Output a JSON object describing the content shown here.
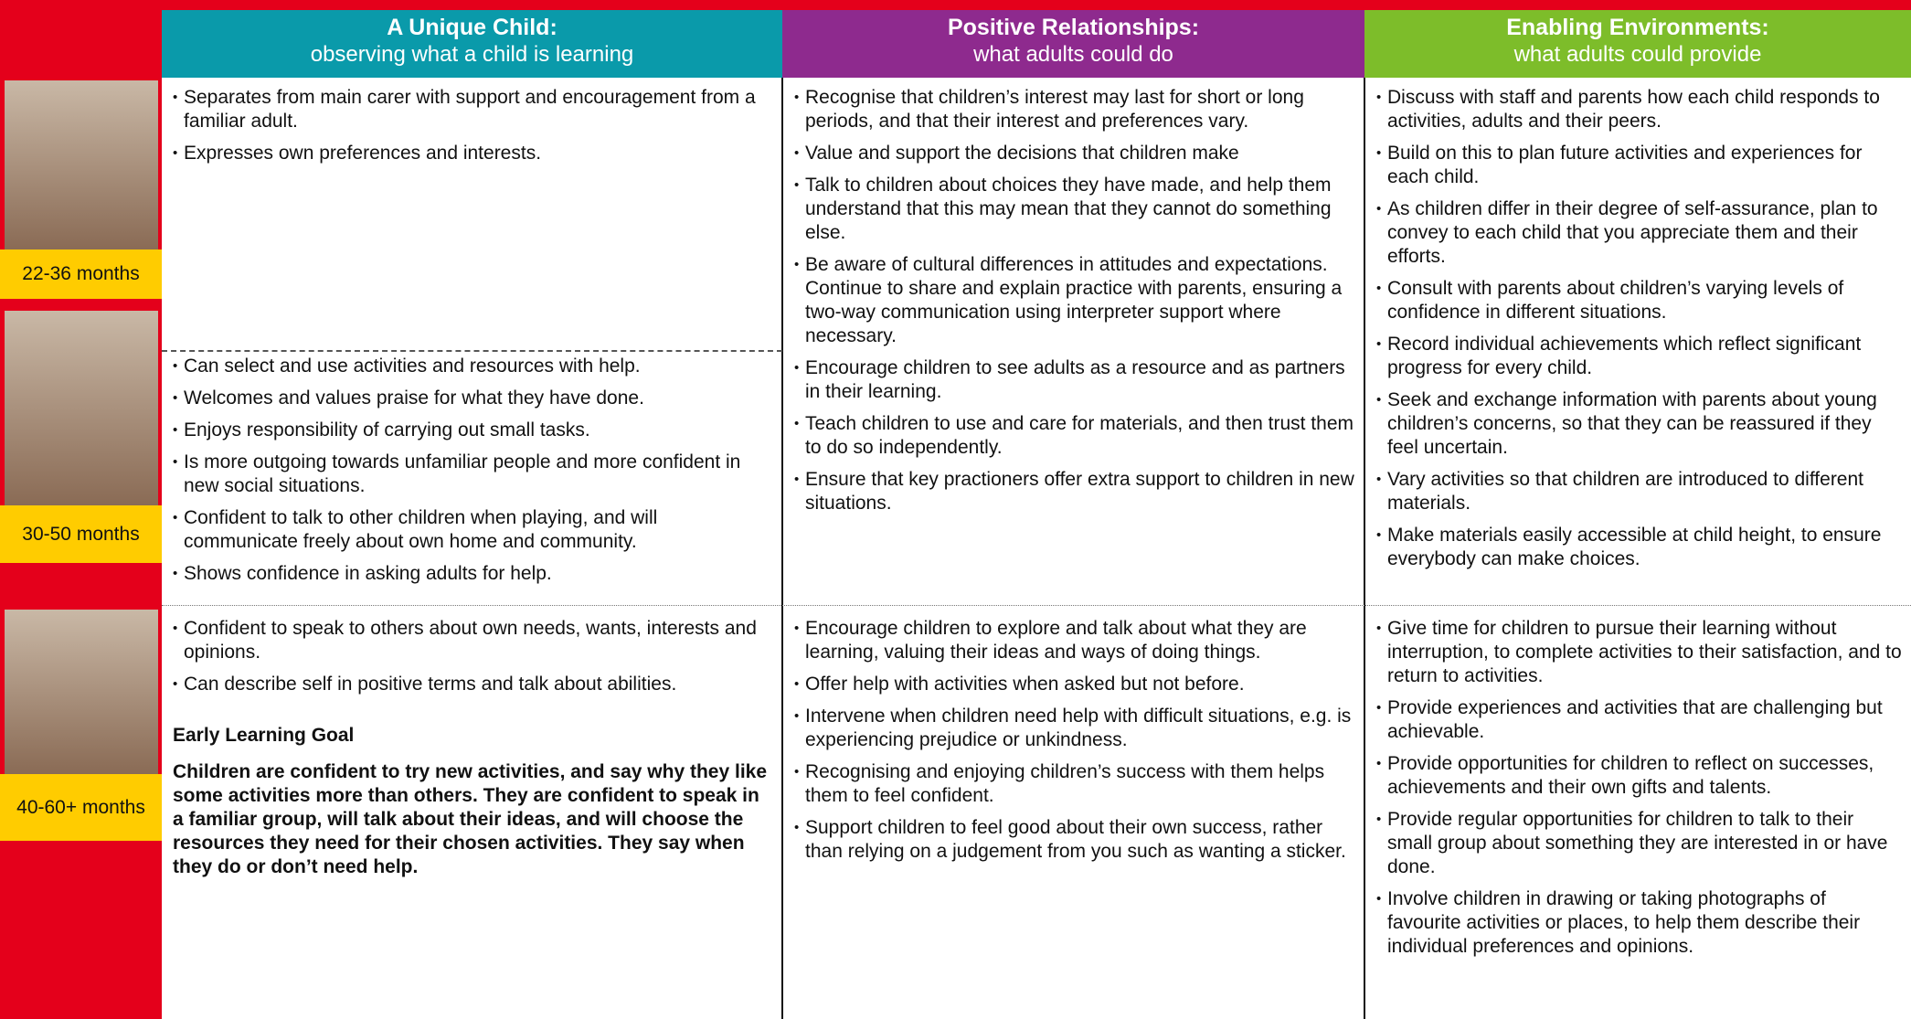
{
  "header": {
    "columns": [
      {
        "title": "A Unique Child:",
        "subtitle": "observing what a child is learning"
      },
      {
        "title": "Positive Relationships:",
        "subtitle": "what adults could do"
      },
      {
        "title": "Enabling Environments:",
        "subtitle": "what adults could provide"
      }
    ]
  },
  "age_bands": [
    "22-36 months",
    "30-50 months",
    "40-60+ months"
  ],
  "unique_child": {
    "band_1": [
      "Separates from main carer with support and encouragement from a familiar adult.",
      "Expresses own preferences and interests."
    ],
    "band_2": [
      "Can select and use activities and resources with help.",
      "Welcomes and values praise for what they have done.",
      "Enjoys responsibility of carrying out small tasks.",
      "Is more outgoing towards unfamiliar people and more confident in new social situations.",
      "Confident to talk to other children when playing, and will communicate freely about own home and community.",
      "Shows confidence in asking adults for help."
    ],
    "band_3": [
      "Confident to speak to others about own needs, wants, interests and opinions.",
      "Can describe self in positive terms and talk about abilities."
    ],
    "goal_heading": "Early Learning Goal",
    "goal_text": "Children are confident to try new activities, and say why they like some activities more than others. They are confident to speak in a familiar group, will talk about their ideas, and will choose the resources they need for their chosen activities. They say when they do or don’t need help."
  },
  "positive_relationships": {
    "rows": [
      [
        "Recognise that children’s interest may last for short or long periods, and that their interest and preferences vary.",
        "Value and support the decisions that children make",
        "Talk to children about choices they have made, and help them understand that this may mean that they cannot do something else.",
        "Be aware of cultural differences in attitudes and expectations. Continue to share and explain practice with parents, ensuring a two-way communication using interpreter support where necessary.",
        "Encourage children to see adults as a resource and as partners in their learning.",
        "Teach children to use and care for materials, and then trust them to do so independently.",
        "Ensure that key practioners offer extra support to children in new situations."
      ],
      [
        "Encourage children to explore and talk about what they are learning, valuing their ideas and ways of doing things.",
        "Offer help with activities when asked but not before.",
        "Intervene when children need help with difficult situations, e.g. is experiencing prejudice or unkindness.",
        "Recognising and enjoying children’s success with them helps them to feel confident.",
        "Support children to feel good about their own success, rather than relying on a judgement from you such as wanting a sticker."
      ]
    ]
  },
  "enabling_environments": {
    "rows": [
      [
        "Discuss with staff and parents how each child responds to activities, adults and their peers.",
        "Build on this to plan future activities and experiences for each child.",
        "As children differ in their degree of self-assurance, plan to convey to each child that you appreciate them and their efforts.",
        "Consult with parents about children’s varying levels of confidence in different situations.",
        "Record individual achievements which reflect significant progress for every child.",
        "Seek and exchange information with parents about young children’s concerns, so that they can be reassured if they feel uncertain.",
        "Vary activities so that children are introduced to different materials.",
        "Make materials easily accessible at child height, to ensure everybody can make choices."
      ],
      [
        "Give time for children to pursue their learning without interruption, to complete activities to their satisfaction, and to return to activities.",
        "Provide experiences and activities that are challenging but achievable.",
        "Provide opportunities for children to reflect on successes, achievements and their own gifts and talents.",
        "Provide regular opportunities for children to talk to their small group about something they are interested in or have done.",
        "Involve children in drawing or taking photographs of favourite activities or places, to help them describe their individual preferences and opinions."
      ]
    ]
  }
}
